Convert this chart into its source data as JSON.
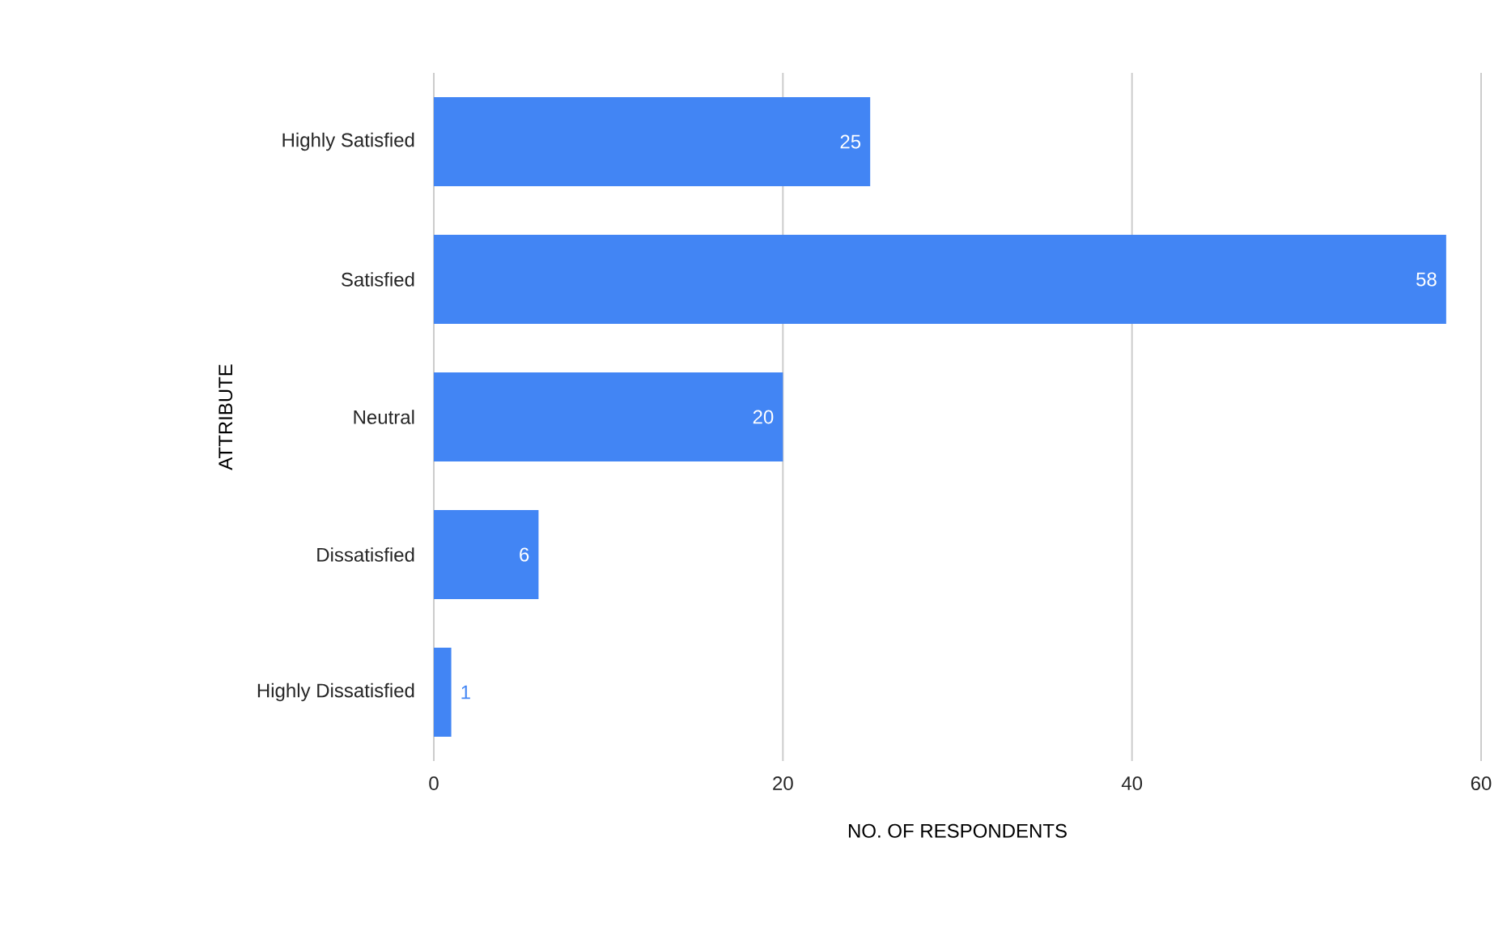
{
  "chart_data": {
    "type": "bar",
    "orientation": "horizontal",
    "categories": [
      "Highly Satisfied",
      "Satisfied",
      "Neutral",
      "Dissatisfied",
      "Highly Dissatisfied"
    ],
    "values": [
      25,
      58,
      20,
      6,
      1
    ],
    "color": "#4285f4",
    "xlabel": "NO. OF RESPONDENTS",
    "ylabel": "ATTRIBUTE",
    "xlim": [
      0,
      60
    ],
    "xticks": [
      0,
      20,
      40,
      60
    ],
    "grid": "x",
    "data_labels": true
  }
}
